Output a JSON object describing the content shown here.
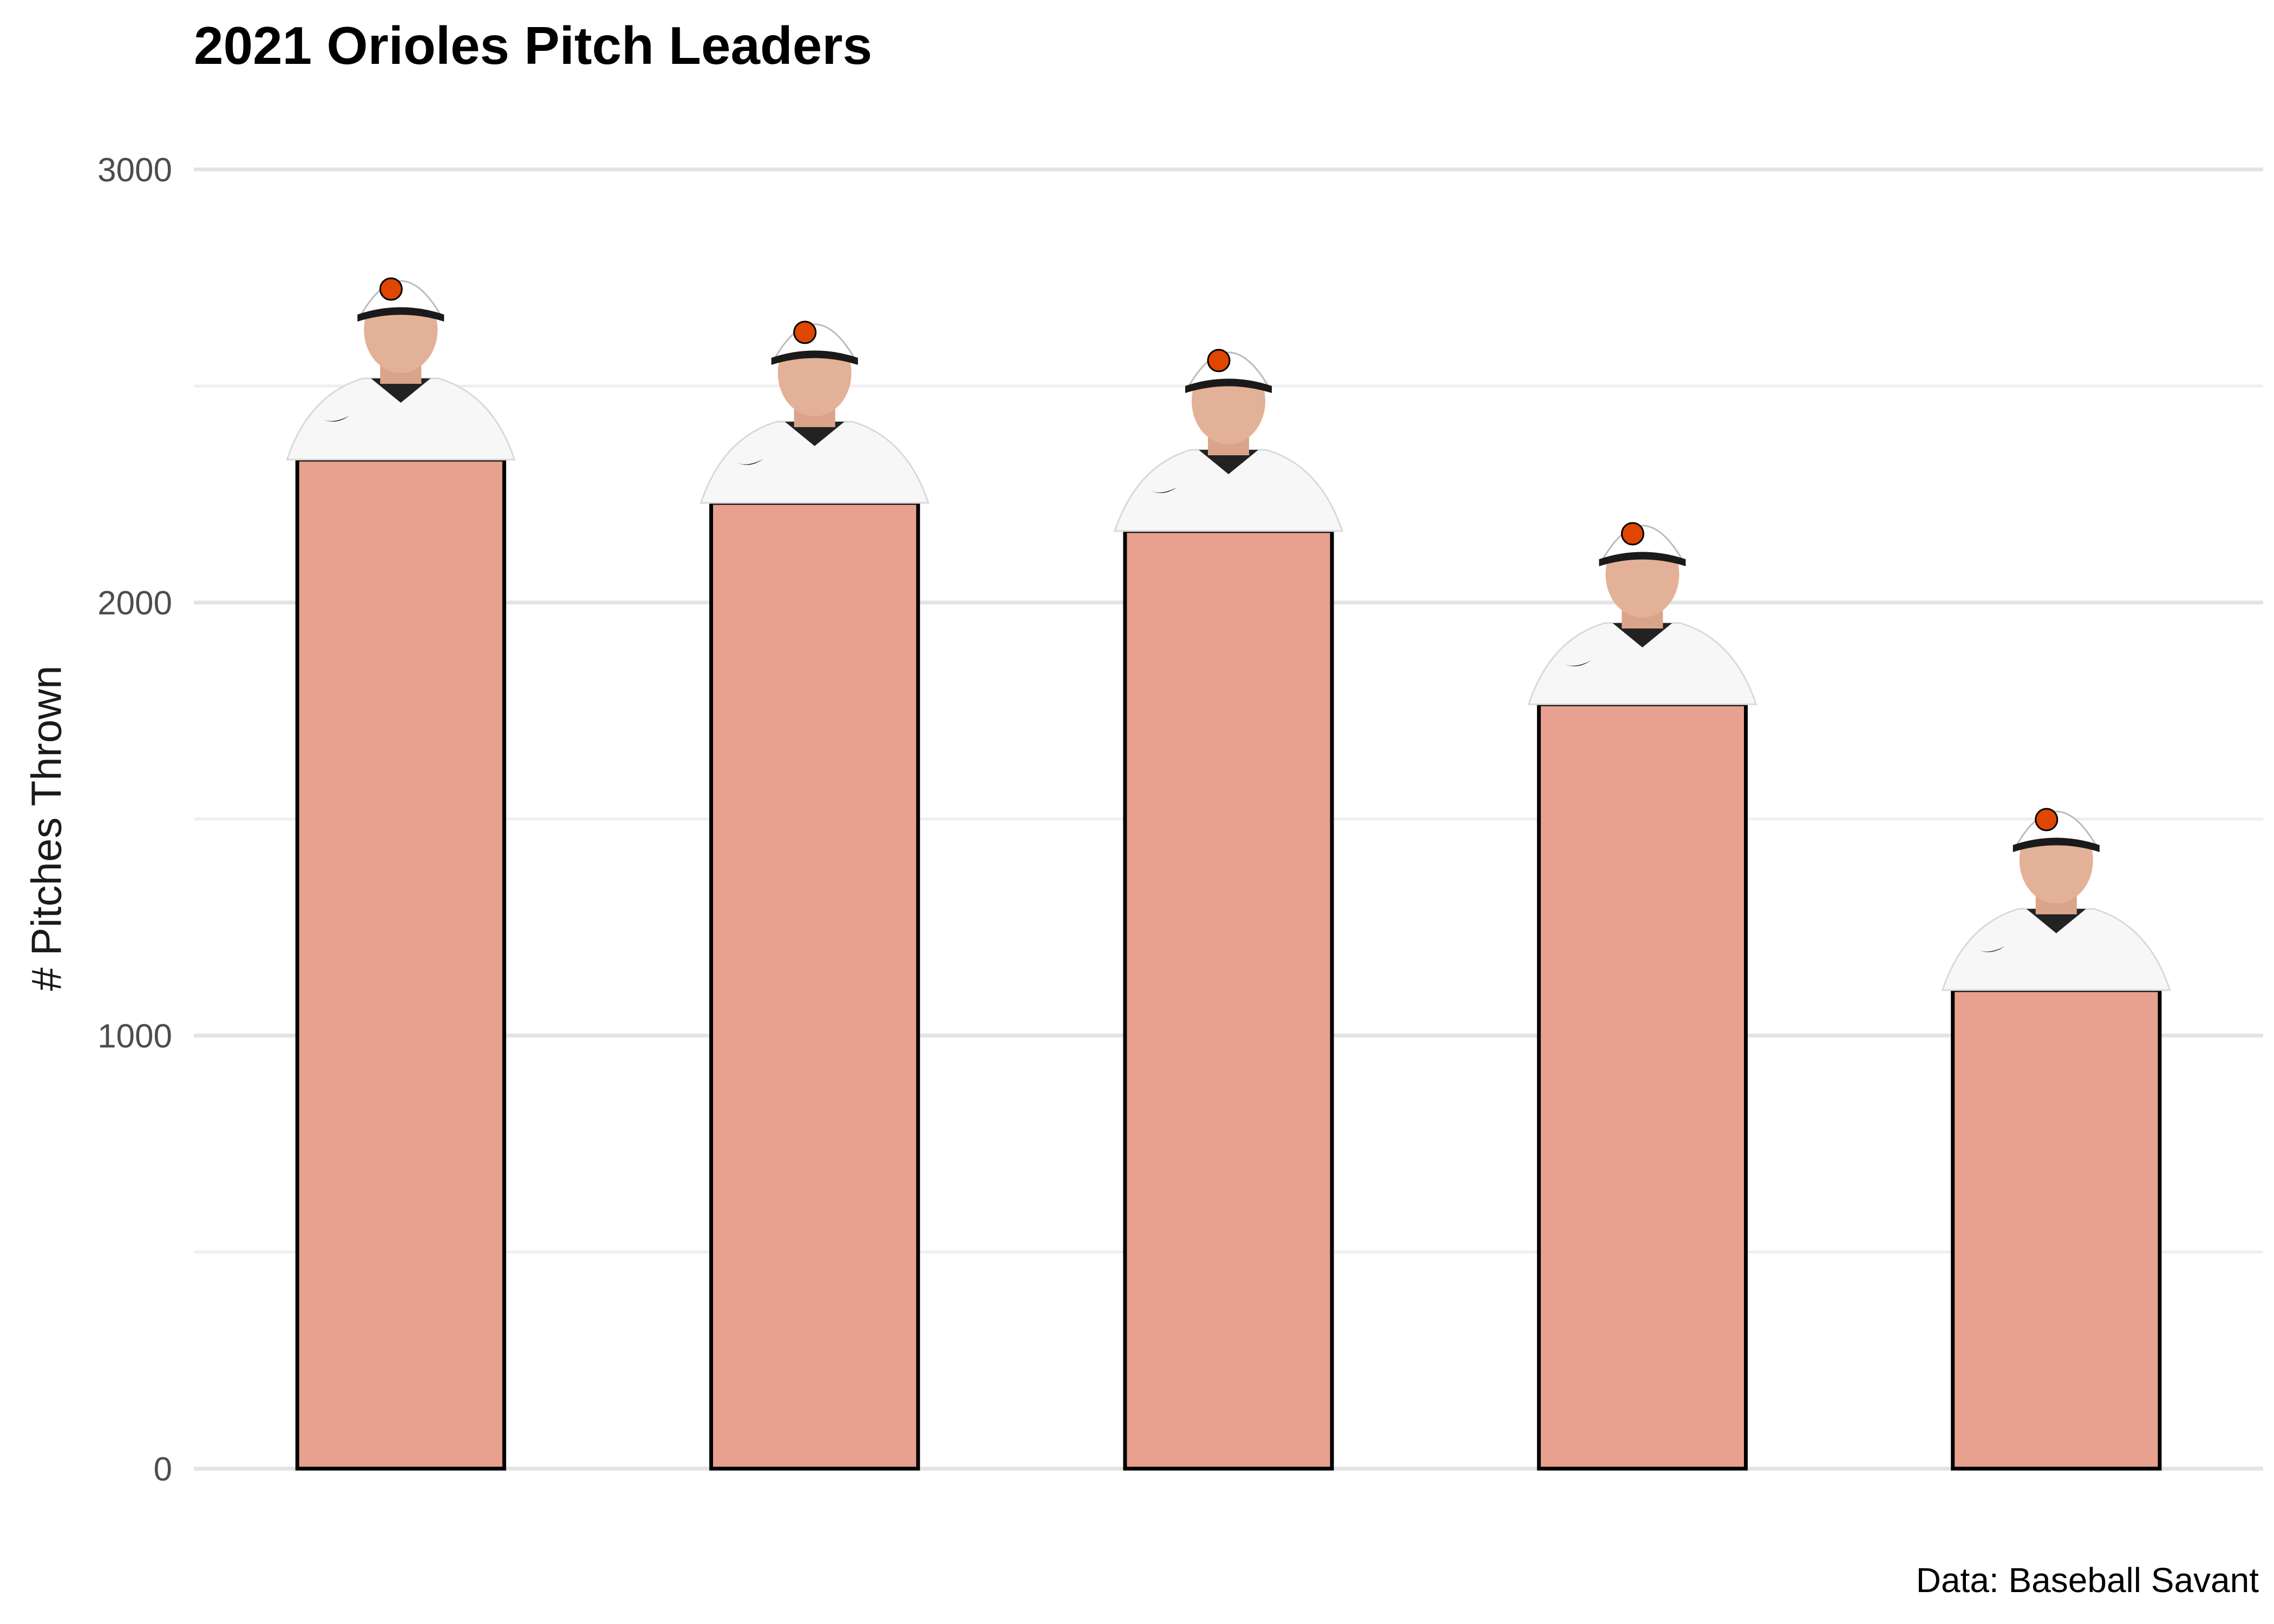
{
  "chart_data": {
    "type": "bar",
    "title": "2021 Orioles Pitch Leaders",
    "caption": "Data: Baseball Savant",
    "xlabel": "",
    "ylabel": "# Pitches Thrown",
    "ylim": [
      0,
      3000
    ],
    "yticks": [
      "0",
      "1000",
      "2000",
      "3000"
    ],
    "categories": [
      "",
      "",
      "",
      "",
      ""
    ],
    "values": [
      2330,
      2230,
      2165,
      1765,
      1105
    ],
    "bar_fill": "#e8a08f",
    "bar_stroke": "#000000",
    "grid": true,
    "legend": "none",
    "category_markers": "player headshot photos (Orioles cap and jersey) above each bar"
  }
}
